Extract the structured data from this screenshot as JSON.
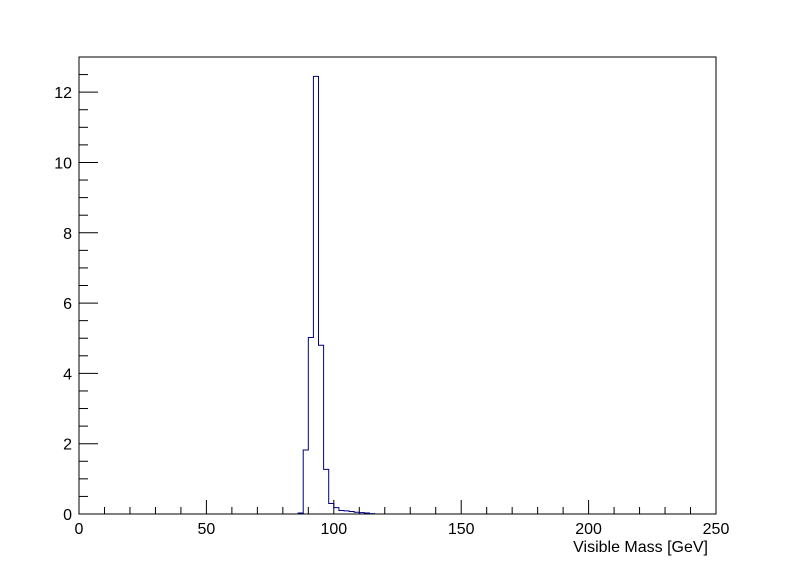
{
  "chart_data": {
    "type": "histogram",
    "xlabel": "Visible Mass [GeV]",
    "ylabel": "",
    "xlim": [
      0,
      250
    ],
    "ylim": [
      0,
      13
    ],
    "grid": false,
    "line_color": "#000080",
    "x_ticks": [
      "0",
      "50",
      "100",
      "150",
      "200",
      "250"
    ],
    "y_ticks": [
      "0",
      "2",
      "4",
      "6",
      "8",
      "10",
      "12"
    ],
    "bin_width": 2,
    "bins": [
      {
        "x": 86,
        "y": 0.03
      },
      {
        "x": 88,
        "y": 1.82
      },
      {
        "x": 90,
        "y": 5.02
      },
      {
        "x": 92,
        "y": 12.45
      },
      {
        "x": 94,
        "y": 4.8
      },
      {
        "x": 96,
        "y": 1.27
      },
      {
        "x": 98,
        "y": 0.3
      },
      {
        "x": 100,
        "y": 0.18
      },
      {
        "x": 102,
        "y": 0.1
      },
      {
        "x": 104,
        "y": 0.09
      },
      {
        "x": 106,
        "y": 0.07
      },
      {
        "x": 108,
        "y": 0.05
      },
      {
        "x": 110,
        "y": 0.04
      },
      {
        "x": 112,
        "y": 0.03
      },
      {
        "x": 114,
        "y": 0.01
      }
    ]
  }
}
